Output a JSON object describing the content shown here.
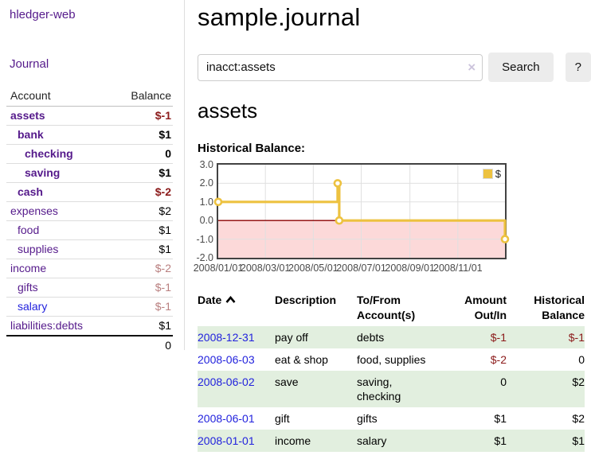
{
  "colors": {
    "purple_link": "#551a8b",
    "blue_link": "#2222dd",
    "negative": "#8b1a1a",
    "negative_faded": "#b97f7f",
    "row_green": "#e2efdf",
    "button_bg": "#ececec"
  },
  "sidebar": {
    "brand": "hledger-web",
    "nav_journal": "Journal",
    "table": {
      "header_account": "Account",
      "header_balance": "Balance",
      "rows": [
        {
          "account": "assets",
          "balance": "$-1"
        },
        {
          "account": "bank",
          "balance": "$1"
        },
        {
          "account": "checking",
          "balance": "0"
        },
        {
          "account": "saving",
          "balance": "$1"
        },
        {
          "account": "cash",
          "balance": "$-2"
        },
        {
          "account": "expenses",
          "balance": "$2"
        },
        {
          "account": "food",
          "balance": "$1"
        },
        {
          "account": "supplies",
          "balance": "$1"
        },
        {
          "account": "income",
          "balance": "$-2"
        },
        {
          "account": "gifts",
          "balance": "$-1"
        },
        {
          "account": "salary",
          "balance": "$-1"
        },
        {
          "account": "liabilities:debts",
          "balance": "$1"
        }
      ],
      "total": "0"
    }
  },
  "main": {
    "title": "sample.journal",
    "search": {
      "value": "inacct:assets",
      "clear_icon": "×",
      "search_button": "Search",
      "help_button": "?"
    },
    "account_heading": "assets",
    "section_label": "Historical Balance:"
  },
  "chart_data": {
    "type": "line",
    "line_style": "step",
    "title": "Historical Balance",
    "x_start": "2008-01-01",
    "x_end": "2008-12-31",
    "ylim": [
      -2.0,
      3.0
    ],
    "yticks": [
      3.0,
      2.0,
      1.0,
      0.0,
      -1.0,
      -2.0
    ],
    "xticks": [
      "2008/01/01",
      "2008/03/01",
      "2008/05/01",
      "2008/07/01",
      "2008/09/01",
      "2008/11/01"
    ],
    "series": [
      {
        "name": "$",
        "color": "#edc240",
        "points": [
          {
            "date": "2008-01-01",
            "value": 1.0
          },
          {
            "date": "2008-06-01",
            "value": 2.0
          },
          {
            "date": "2008-06-03",
            "value": 0.0
          },
          {
            "date": "2008-12-31",
            "value": -1.0
          }
        ]
      }
    ],
    "legend_position": "top-right",
    "negative_region": true,
    "negative_region_color": "#fcd9d9",
    "zero_line_color": "#8b0000",
    "grid": true,
    "grid_color": "#e0e0e0"
  },
  "register": {
    "headers": {
      "date": "Date",
      "description": "Description",
      "accounts": "To/From Account(s)",
      "amount": "Amount Out/In",
      "balance": "Historical Balance"
    },
    "rows": [
      {
        "date": "2008-12-31",
        "description": "pay off",
        "accounts": "debts",
        "amount": "$-1",
        "balance": "$-1"
      },
      {
        "date": "2008-06-03",
        "description": "eat & shop",
        "accounts": "food, supplies",
        "amount": "$-2",
        "balance": "0"
      },
      {
        "date": "2008-06-02",
        "description": "save",
        "accounts": "saving, checking",
        "amount": "0",
        "balance": "$2"
      },
      {
        "date": "2008-06-01",
        "description": "gift",
        "accounts": "gifts",
        "amount": "$1",
        "balance": "$2"
      },
      {
        "date": "2008-01-01",
        "description": "income",
        "accounts": "salary",
        "amount": "$1",
        "balance": "$1"
      }
    ]
  }
}
